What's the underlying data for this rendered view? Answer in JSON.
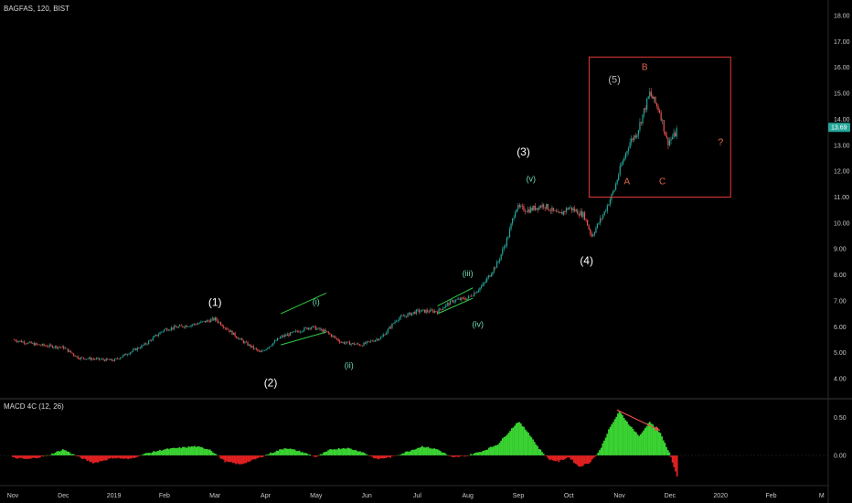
{
  "header": {
    "symbol": "BAGFAS, 120, BIST",
    "macd_label": "MACD 4C (12, 26)"
  },
  "colors": {
    "background": "#000000",
    "candle_up": "#26a69a",
    "candle_down": "#ef5350",
    "channel": "#2ecc40",
    "box": "#e53935",
    "macd_up": "#3ad332",
    "macd_down": "#e02020",
    "price_badge": "#26a69a",
    "arrow": "#e34a4a"
  },
  "chart_data": {
    "type": "line",
    "title": "",
    "price_axis": {
      "ticks": [
        "18.00",
        "17.00",
        "16.00",
        "15.00",
        "14.00",
        "13.00",
        "12.00",
        "11.00",
        "10.00",
        "9.00",
        "8.00",
        "7.00",
        "6.00",
        "5.00",
        "4.00"
      ],
      "range": [
        3.25,
        18.35
      ],
      "last_price": "13.69"
    },
    "macd_axis": {
      "ticks": [
        "0.50",
        "0.00"
      ],
      "range": [
        -0.55,
        0.65
      ]
    },
    "time_axis": {
      "ticks": [
        "Nov",
        "Dec",
        "2019",
        "Feb",
        "Mar",
        "Apr",
        "May",
        "Jun",
        "Jul",
        "Aug",
        "Sep",
        "Oct",
        "Nov",
        "Dec",
        "2020",
        "Feb",
        "M"
      ],
      "tick_t": [
        0,
        1,
        2,
        3,
        4,
        5,
        6,
        7,
        8,
        9,
        10,
        11,
        12,
        13,
        14,
        15,
        16
      ]
    },
    "price_path": {
      "t": [
        0,
        0.5,
        1.0,
        1.3,
        2.0,
        2.6,
        3.0,
        3.6,
        4.0,
        4.5,
        4.9,
        5.3,
        5.6,
        5.9,
        6.2,
        6.5,
        6.9,
        7.3,
        7.6,
        8.0,
        8.4,
        8.7,
        9.0,
        9.3,
        9.6,
        9.8,
        9.95,
        10.2,
        10.5,
        10.8,
        11.0,
        11.3,
        11.45,
        11.7,
        11.9,
        12.0,
        12.2,
        12.35,
        12.6,
        12.8,
        12.95,
        13.1,
        13.15
      ],
      "price": [
        5.5,
        5.3,
        5.2,
        4.8,
        4.7,
        5.3,
        5.9,
        6.1,
        6.3,
        5.5,
        5.0,
        5.6,
        5.8,
        6.0,
        5.8,
        5.4,
        5.3,
        5.6,
        6.3,
        6.6,
        6.6,
        7.0,
        7.1,
        7.6,
        8.5,
        9.5,
        10.6,
        10.5,
        10.7,
        10.3,
        10.6,
        10.3,
        9.5,
        10.4,
        11.3,
        12.0,
        13.1,
        13.5,
        15.0,
        14.3,
        13.1,
        13.4,
        13.7
      ]
    },
    "macd_path": {
      "t": [
        0,
        0.3,
        0.7,
        1.0,
        1.3,
        1.6,
        2.0,
        2.3,
        2.6,
        3.0,
        3.3,
        3.6,
        3.9,
        4.2,
        4.5,
        4.8,
        5.1,
        5.4,
        5.7,
        6.0,
        6.3,
        6.6,
        6.9,
        7.2,
        7.5,
        7.8,
        8.1,
        8.4,
        8.7,
        9.0,
        9.3,
        9.6,
        9.8,
        10.0,
        10.2,
        10.4,
        10.6,
        10.8,
        11.0,
        11.2,
        11.4,
        11.6,
        11.8,
        12.0,
        12.2,
        12.4,
        12.6,
        12.8,
        13.0,
        13.15
      ],
      "value": [
        -0.03,
        -0.05,
        0.0,
        0.08,
        -0.02,
        -0.1,
        -0.03,
        -0.05,
        0.02,
        0.08,
        0.1,
        0.12,
        0.08,
        -0.08,
        -0.12,
        -0.05,
        0.03,
        0.1,
        0.05,
        -0.02,
        0.08,
        0.1,
        0.05,
        -0.05,
        -0.02,
        0.05,
        0.12,
        0.08,
        -0.03,
        0.0,
        0.06,
        0.15,
        0.3,
        0.45,
        0.3,
        0.1,
        -0.05,
        -0.08,
        -0.02,
        -0.15,
        -0.1,
        0.05,
        0.35,
        0.58,
        0.4,
        0.25,
        0.45,
        0.3,
        0.02,
        -0.3
      ]
    },
    "wave_labels": [
      {
        "text": "(1)",
        "t": 4.0,
        "price": 6.8,
        "style": "wave"
      },
      {
        "text": "(2)",
        "t": 5.1,
        "price": 3.7,
        "style": "wave"
      },
      {
        "text": "(3)",
        "t": 10.1,
        "price": 12.6,
        "style": "wave"
      },
      {
        "text": "(4)",
        "t": 11.35,
        "price": 8.4,
        "style": "wave"
      },
      {
        "text": "(5)",
        "t": 11.9,
        "price": 15.4,
        "style": "w5"
      },
      {
        "text": "(i)",
        "t": 6.0,
        "price": 6.85,
        "style": "wave-minor"
      },
      {
        "text": "(ii)",
        "t": 6.65,
        "price": 4.4,
        "style": "wave-minor"
      },
      {
        "text": "(iii)",
        "t": 9.0,
        "price": 7.95,
        "style": "wave-minor"
      },
      {
        "text": "(iv)",
        "t": 9.2,
        "price": 6.0,
        "style": "wave-minor"
      },
      {
        "text": "(v)",
        "t": 10.25,
        "price": 11.6,
        "style": "wave-minor"
      },
      {
        "text": "A",
        "t": 12.15,
        "price": 11.5,
        "style": "abc"
      },
      {
        "text": "B",
        "t": 12.5,
        "price": 15.9,
        "style": "abc"
      },
      {
        "text": "C",
        "t": 12.85,
        "price": 11.5,
        "style": "abc"
      },
      {
        "text": "?",
        "t": 14.0,
        "price": 13.0,
        "style": "q"
      }
    ],
    "channels": [
      {
        "t": [
          5.3,
          6.2
        ],
        "upper": [
          6.5,
          7.3
        ],
        "lower": [
          5.3,
          5.8
        ]
      },
      {
        "t": [
          8.4,
          9.1
        ],
        "upper": [
          6.8,
          7.5
        ],
        "lower": [
          6.5,
          7.1
        ]
      }
    ],
    "box": {
      "t": [
        11.4,
        14.2
      ],
      "price": [
        11.0,
        16.4
      ]
    },
    "macd_arrow": {
      "t": [
        11.95,
        12.8
      ],
      "value": [
        0.6,
        0.33
      ]
    }
  }
}
